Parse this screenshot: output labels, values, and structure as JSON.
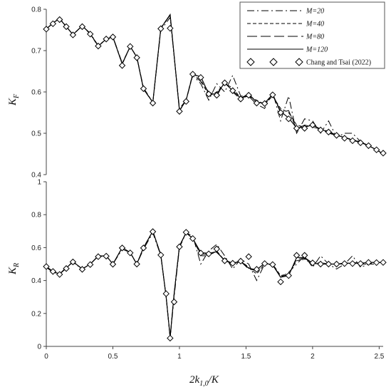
{
  "chart_data": [
    {
      "type": "line",
      "ylabel_main": "K",
      "ylabel_sub": "F",
      "xlim": [
        0,
        2.53
      ],
      "ylim": [
        0.4,
        0.8
      ],
      "yticks": [
        "0.4",
        "0.5",
        "0.6",
        "0.7",
        "0.8"
      ],
      "ytick_values": [
        0.4,
        0.5,
        0.6,
        0.7,
        0.8
      ],
      "grid": false,
      "legend_position": "top-right",
      "series": [
        {
          "name": "M=20",
          "style": "dashdot",
          "x": [
            0,
            0.05,
            0.1,
            0.15,
            0.2,
            0.27,
            0.33,
            0.39,
            0.45,
            0.5,
            0.57,
            0.63,
            0.68,
            0.73,
            0.8,
            0.86,
            0.93,
            1.0,
            1.05,
            1.1,
            1.16,
            1.22,
            1.28,
            1.34,
            1.4,
            1.46,
            1.52,
            1.58,
            1.64,
            1.7,
            1.76,
            1.82,
            1.88,
            1.94,
            2.0,
            2.06,
            2.12,
            2.18,
            2.24,
            2.3,
            2.36,
            2.42,
            2.48,
            2.53
          ],
          "y": [
            0.752,
            0.766,
            0.778,
            0.759,
            0.738,
            0.76,
            0.742,
            0.712,
            0.728,
            0.734,
            0.67,
            0.71,
            0.685,
            0.61,
            0.575,
            0.75,
            0.78,
            0.56,
            0.58,
            0.64,
            0.62,
            0.58,
            0.62,
            0.6,
            0.64,
            0.59,
            0.59,
            0.57,
            0.56,
            0.6,
            0.53,
            0.59,
            0.5,
            0.535,
            0.53,
            0.5,
            0.53,
            0.49,
            0.5,
            0.5,
            0.48,
            0.47,
            0.46,
            0.45
          ]
        },
        {
          "name": "M=40",
          "style": "dashed",
          "x": [
            0,
            0.05,
            0.1,
            0.15,
            0.2,
            0.27,
            0.33,
            0.39,
            0.45,
            0.5,
            0.57,
            0.63,
            0.68,
            0.73,
            0.8,
            0.86,
            0.93,
            1.0,
            1.05,
            1.1,
            1.16,
            1.22,
            1.28,
            1.34,
            1.4,
            1.46,
            1.52,
            1.58,
            1.64,
            1.7,
            1.76,
            1.82,
            1.88,
            1.94,
            2.0,
            2.06,
            2.12,
            2.18,
            2.24,
            2.3,
            2.36,
            2.42,
            2.48,
            2.53
          ],
          "y": [
            0.752,
            0.768,
            0.777,
            0.758,
            0.739,
            0.76,
            0.74,
            0.71,
            0.728,
            0.733,
            0.667,
            0.71,
            0.684,
            0.606,
            0.575,
            0.755,
            0.787,
            0.554,
            0.58,
            0.645,
            0.63,
            0.59,
            0.6,
            0.62,
            0.61,
            0.585,
            0.59,
            0.58,
            0.57,
            0.59,
            0.56,
            0.55,
            0.52,
            0.515,
            0.52,
            0.51,
            0.5,
            0.495,
            0.49,
            0.485,
            0.48,
            0.47,
            0.46,
            0.45
          ]
        },
        {
          "name": "M=80",
          "style": "longdash",
          "x": [
            0,
            0.05,
            0.1,
            0.15,
            0.2,
            0.27,
            0.33,
            0.39,
            0.45,
            0.5,
            0.57,
            0.63,
            0.68,
            0.73,
            0.8,
            0.86,
            0.93,
            1.0,
            1.05,
            1.1,
            1.16,
            1.22,
            1.28,
            1.34,
            1.4,
            1.46,
            1.52,
            1.58,
            1.64,
            1.7,
            1.76,
            1.82,
            1.88,
            1.94,
            2.0,
            2.06,
            2.12,
            2.18,
            2.24,
            2.3,
            2.36,
            2.42,
            2.48,
            2.53
          ],
          "y": [
            0.752,
            0.767,
            0.777,
            0.758,
            0.739,
            0.76,
            0.741,
            0.711,
            0.728,
            0.733,
            0.668,
            0.71,
            0.684,
            0.607,
            0.575,
            0.753,
            0.786,
            0.555,
            0.58,
            0.643,
            0.625,
            0.6,
            0.59,
            0.625,
            0.6,
            0.582,
            0.595,
            0.575,
            0.572,
            0.595,
            0.55,
            0.555,
            0.51,
            0.52,
            0.515,
            0.51,
            0.505,
            0.495,
            0.49,
            0.485,
            0.478,
            0.47,
            0.46,
            0.45
          ]
        },
        {
          "name": "M=120",
          "style": "solid",
          "x": [
            0,
            0.05,
            0.1,
            0.15,
            0.2,
            0.27,
            0.33,
            0.39,
            0.45,
            0.5,
            0.57,
            0.63,
            0.68,
            0.73,
            0.8,
            0.86,
            0.93,
            1.0,
            1.05,
            1.1,
            1.16,
            1.22,
            1.28,
            1.34,
            1.4,
            1.46,
            1.52,
            1.58,
            1.64,
            1.7,
            1.76,
            1.82,
            1.88,
            1.94,
            2.0,
            2.06,
            2.12,
            2.18,
            2.24,
            2.3,
            2.36,
            2.42,
            2.48,
            2.53
          ],
          "y": [
            0.752,
            0.767,
            0.777,
            0.758,
            0.739,
            0.76,
            0.741,
            0.711,
            0.728,
            0.733,
            0.668,
            0.71,
            0.684,
            0.607,
            0.575,
            0.754,
            0.787,
            0.555,
            0.58,
            0.642,
            0.637,
            0.595,
            0.595,
            0.622,
            0.603,
            0.585,
            0.595,
            0.575,
            0.573,
            0.594,
            0.553,
            0.537,
            0.513,
            0.515,
            0.52,
            0.51,
            0.503,
            0.495,
            0.49,
            0.483,
            0.478,
            0.47,
            0.46,
            0.45
          ]
        },
        {
          "name": "Chang and Tsai (2022)",
          "style": "markers",
          "x": [
            0,
            0.05,
            0.1,
            0.15,
            0.2,
            0.27,
            0.33,
            0.39,
            0.45,
            0.5,
            0.57,
            0.63,
            0.68,
            0.73,
            0.8,
            0.86,
            0.93,
            1.0,
            1.05,
            1.1,
            1.16,
            1.22,
            1.28,
            1.34,
            1.4,
            1.46,
            1.52,
            1.58,
            1.64,
            1.7,
            1.76,
            1.82,
            1.88,
            1.94,
            2.0,
            2.06,
            2.12,
            2.18,
            2.24,
            2.3,
            2.36,
            2.42,
            2.48,
            2.53
          ],
          "y": [
            0.752,
            0.765,
            0.775,
            0.758,
            0.738,
            0.758,
            0.74,
            0.711,
            0.728,
            0.733,
            0.664,
            0.71,
            0.683,
            0.608,
            0.573,
            0.753,
            0.754,
            0.553,
            0.577,
            0.643,
            0.635,
            0.595,
            0.592,
            0.622,
            0.603,
            0.583,
            0.592,
            0.573,
            0.572,
            0.593,
            0.55,
            0.535,
            0.512,
            0.512,
            0.52,
            0.508,
            0.503,
            0.495,
            0.488,
            0.482,
            0.477,
            0.47,
            0.46,
            0.452
          ]
        }
      ]
    },
    {
      "type": "line",
      "ylabel_main": "K",
      "ylabel_sub": "R",
      "xlabel_pre": "2k",
      "xlabel_sub": "1,0",
      "xlabel_post": "/K",
      "xlim": [
        0,
        2.53
      ],
      "ylim": [
        0,
        1
      ],
      "xticks": [
        "0",
        "0.5",
        "1",
        "1.5",
        "2",
        "2.5"
      ],
      "xtick_values": [
        0,
        0.5,
        1,
        1.5,
        2,
        2.5
      ],
      "yticks": [
        "0",
        "0.2",
        "0.4",
        "0.6",
        "0.8",
        "1"
      ],
      "ytick_values": [
        0,
        0.2,
        0.4,
        0.6,
        0.8,
        1
      ],
      "grid": false,
      "series": [
        {
          "name": "M=20",
          "style": "dashdot",
          "x": [
            0,
            0.05,
            0.1,
            0.15,
            0.2,
            0.27,
            0.33,
            0.39,
            0.45,
            0.5,
            0.57,
            0.63,
            0.68,
            0.73,
            0.8,
            0.86,
            0.9,
            0.93,
            0.96,
            1.0,
            1.05,
            1.1,
            1.16,
            1.22,
            1.28,
            1.34,
            1.4,
            1.46,
            1.52,
            1.58,
            1.64,
            1.7,
            1.76,
            1.82,
            1.88,
            1.94,
            2.0,
            2.06,
            2.12,
            2.18,
            2.24,
            2.3,
            2.36,
            2.42,
            2.48,
            2.53
          ],
          "y": [
            0.48,
            0.45,
            0.44,
            0.48,
            0.51,
            0.47,
            0.5,
            0.55,
            0.55,
            0.5,
            0.59,
            0.57,
            0.5,
            0.59,
            0.69,
            0.55,
            0.3,
            0.05,
            0.3,
            0.6,
            0.69,
            0.67,
            0.5,
            0.58,
            0.62,
            0.55,
            0.47,
            0.53,
            0.5,
            0.4,
            0.5,
            0.5,
            0.42,
            0.45,
            0.5,
            0.55,
            0.48,
            0.55,
            0.5,
            0.47,
            0.5,
            0.55,
            0.48,
            0.5,
            0.5,
            0.51
          ]
        },
        {
          "name": "M=40",
          "style": "dashed",
          "x": [
            0,
            0.05,
            0.1,
            0.15,
            0.2,
            0.27,
            0.33,
            0.39,
            0.45,
            0.5,
            0.57,
            0.63,
            0.68,
            0.73,
            0.8,
            0.86,
            0.9,
            0.93,
            0.96,
            1.0,
            1.05,
            1.1,
            1.16,
            1.22,
            1.28,
            1.34,
            1.4,
            1.46,
            1.52,
            1.58,
            1.64,
            1.7,
            1.76,
            1.82,
            1.88,
            1.94,
            2.0,
            2.06,
            2.12,
            2.18,
            2.24,
            2.3,
            2.36,
            2.42,
            2.48,
            2.53
          ],
          "y": [
            0.485,
            0.455,
            0.44,
            0.475,
            0.515,
            0.47,
            0.5,
            0.548,
            0.55,
            0.5,
            0.6,
            0.568,
            0.5,
            0.6,
            0.7,
            0.555,
            0.3,
            0.06,
            0.32,
            0.61,
            0.69,
            0.66,
            0.55,
            0.55,
            0.58,
            0.52,
            0.5,
            0.52,
            0.48,
            0.44,
            0.5,
            0.5,
            0.43,
            0.44,
            0.52,
            0.53,
            0.5,
            0.51,
            0.5,
            0.5,
            0.5,
            0.51,
            0.5,
            0.5,
            0.51,
            0.51
          ]
        },
        {
          "name": "M=80",
          "style": "longdash",
          "x": [
            0,
            0.05,
            0.1,
            0.15,
            0.2,
            0.27,
            0.33,
            0.39,
            0.45,
            0.5,
            0.57,
            0.63,
            0.68,
            0.73,
            0.8,
            0.86,
            0.9,
            0.93,
            0.96,
            1.0,
            1.05,
            1.1,
            1.16,
            1.22,
            1.28,
            1.34,
            1.4,
            1.46,
            1.52,
            1.58,
            1.64,
            1.7,
            1.76,
            1.82,
            1.88,
            1.94,
            2.0,
            2.06,
            2.12,
            2.18,
            2.24,
            2.3,
            2.36,
            2.42,
            2.48,
            2.53
          ],
          "y": [
            0.485,
            0.455,
            0.44,
            0.475,
            0.515,
            0.47,
            0.5,
            0.548,
            0.55,
            0.5,
            0.6,
            0.57,
            0.5,
            0.6,
            0.7,
            0.555,
            0.3,
            0.055,
            0.32,
            0.61,
            0.69,
            0.655,
            0.56,
            0.56,
            0.57,
            0.525,
            0.505,
            0.515,
            0.47,
            0.46,
            0.505,
            0.495,
            0.425,
            0.435,
            0.53,
            0.535,
            0.505,
            0.5,
            0.5,
            0.5,
            0.505,
            0.51,
            0.505,
            0.51,
            0.51,
            0.51
          ]
        },
        {
          "name": "M=120",
          "style": "solid",
          "x": [
            0,
            0.05,
            0.1,
            0.15,
            0.2,
            0.27,
            0.33,
            0.39,
            0.45,
            0.5,
            0.57,
            0.63,
            0.68,
            0.73,
            0.8,
            0.86,
            0.9,
            0.93,
            0.96,
            1.0,
            1.05,
            1.1,
            1.16,
            1.22,
            1.28,
            1.34,
            1.4,
            1.46,
            1.52,
            1.58,
            1.64,
            1.7,
            1.76,
            1.82,
            1.88,
            1.94,
            2.0,
            2.06,
            2.12,
            2.18,
            2.24,
            2.3,
            2.36,
            2.42,
            2.48,
            2.53
          ],
          "y": [
            0.485,
            0.455,
            0.44,
            0.475,
            0.515,
            0.47,
            0.5,
            0.548,
            0.55,
            0.5,
            0.6,
            0.57,
            0.5,
            0.6,
            0.7,
            0.555,
            0.3,
            0.055,
            0.32,
            0.61,
            0.69,
            0.655,
            0.57,
            0.565,
            0.575,
            0.52,
            0.505,
            0.518,
            0.475,
            0.465,
            0.505,
            0.495,
            0.42,
            0.43,
            0.54,
            0.54,
            0.505,
            0.5,
            0.5,
            0.5,
            0.505,
            0.505,
            0.505,
            0.51,
            0.51,
            0.51
          ]
        },
        {
          "name": "Chang and Tsai (2022)",
          "style": "markers",
          "x": [
            0,
            0.05,
            0.1,
            0.15,
            0.2,
            0.27,
            0.33,
            0.39,
            0.45,
            0.5,
            0.57,
            0.63,
            0.68,
            0.73,
            0.8,
            0.86,
            0.9,
            0.93,
            0.96,
            1.0,
            1.05,
            1.1,
            1.16,
            1.22,
            1.28,
            1.34,
            1.4,
            1.46,
            1.52,
            1.58,
            1.64,
            1.7,
            1.76,
            1.82,
            1.88,
            1.94,
            2.0,
            2.06,
            2.12,
            2.18,
            2.24,
            2.3,
            2.36,
            2.42,
            2.48,
            2.53
          ],
          "y": [
            0.485,
            0.455,
            0.437,
            0.473,
            0.513,
            0.468,
            0.497,
            0.545,
            0.548,
            0.499,
            0.598,
            0.568,
            0.5,
            0.598,
            0.697,
            0.555,
            0.32,
            0.05,
            0.27,
            0.605,
            0.693,
            0.655,
            0.567,
            0.562,
            0.592,
            0.52,
            0.505,
            0.518,
            0.545,
            0.468,
            0.503,
            0.497,
            0.392,
            0.43,
            0.553,
            0.553,
            0.507,
            0.5,
            0.5,
            0.5,
            0.503,
            0.503,
            0.503,
            0.51,
            0.509,
            0.51
          ]
        }
      ]
    }
  ],
  "legend": {
    "entries": [
      {
        "label": "M=20",
        "style": "dashdot"
      },
      {
        "label": "M=40",
        "style": "dashed"
      },
      {
        "label": "M=80",
        "style": "longdash"
      },
      {
        "label": "M=120",
        "style": "solid"
      },
      {
        "label": "Chang and Tsai (2022)",
        "style": "markers"
      }
    ]
  },
  "colors": {
    "line": "#000000",
    "axis": "#444444",
    "text": "#111111"
  }
}
